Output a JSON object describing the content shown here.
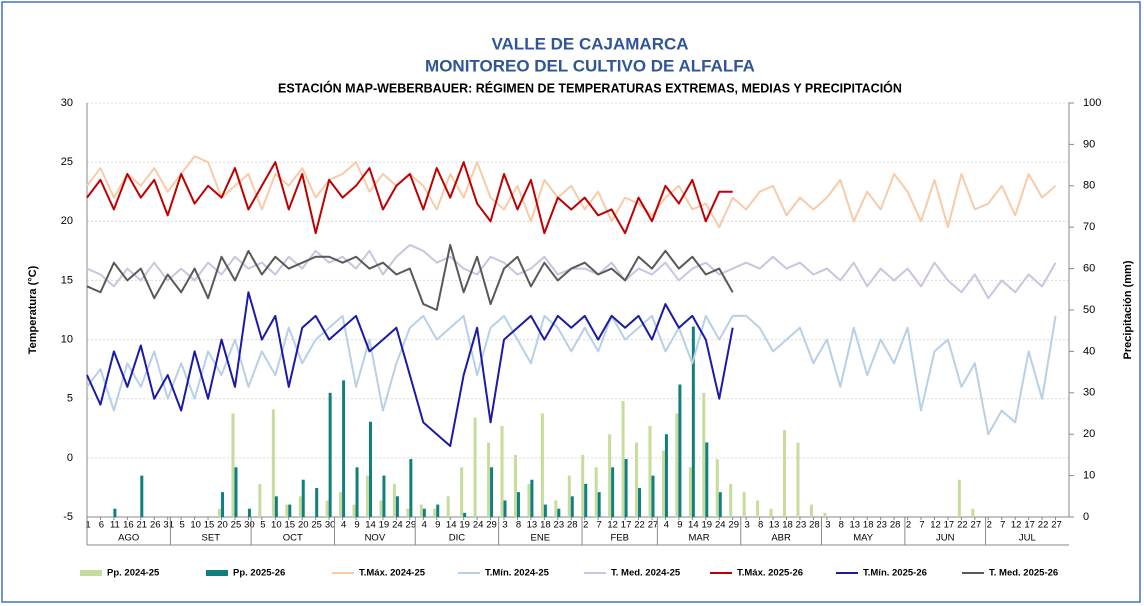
{
  "chart_data": {
    "type": "line",
    "title": "VALLE DE CAJAMARCA",
    "subtitle": "MONITOREO DEL CULTIVO DE ALFALFA",
    "subtitle2": "ESTACIÓN MAP-WEBERBAUER: RÉGIMEN DE TEMPERATURAS EXTREMAS, MEDIAS Y PRECIPITACIÓN",
    "ylabel": "Temperatura (°C)",
    "y2label": "Precipitación (mm)",
    "ylim": [
      -5,
      30
    ],
    "yticks": [
      -5,
      0,
      5,
      10,
      15,
      20,
      25,
      30
    ],
    "y2lim": [
      0,
      100
    ],
    "y2ticks": [
      0,
      10,
      20,
      30,
      40,
      50,
      60,
      70,
      80,
      90,
      100
    ],
    "xlim": [
      0,
      365
    ],
    "grid": true,
    "months": [
      "AGO",
      "SET",
      "OCT",
      "NOV",
      "DIC",
      "ENE",
      "FEB",
      "MAR",
      "ABR",
      "MAY",
      "JUN",
      "JUL"
    ],
    "xticks": [
      {
        "value": 0,
        "label": "1"
      },
      {
        "value": 5,
        "label": "6"
      },
      {
        "value": 10,
        "label": "11"
      },
      {
        "value": 15,
        "label": "16"
      },
      {
        "value": 20,
        "label": "21"
      },
      {
        "value": 25,
        "label": "26"
      },
      {
        "value": 30,
        "label": "31"
      },
      {
        "value": 35,
        "label": "5"
      },
      {
        "value": 40,
        "label": "10"
      },
      {
        "value": 45,
        "label": "15"
      },
      {
        "value": 50,
        "label": "20"
      },
      {
        "value": 55,
        "label": "25"
      },
      {
        "value": 60,
        "label": "30"
      },
      {
        "value": 65,
        "label": "5"
      },
      {
        "value": 70,
        "label": "10"
      },
      {
        "value": 75,
        "label": "15"
      },
      {
        "value": 80,
        "label": "20"
      },
      {
        "value": 85,
        "label": "25"
      },
      {
        "value": 90,
        "label": "30"
      },
      {
        "value": 95,
        "label": "4"
      },
      {
        "value": 100,
        "label": "9"
      },
      {
        "value": 105,
        "label": "14"
      },
      {
        "value": 110,
        "label": "19"
      },
      {
        "value": 115,
        "label": "24"
      },
      {
        "value": 120,
        "label": "29"
      },
      {
        "value": 125,
        "label": "4"
      },
      {
        "value": 130,
        "label": "9"
      },
      {
        "value": 135,
        "label": "14"
      },
      {
        "value": 140,
        "label": "19"
      },
      {
        "value": 145,
        "label": "24"
      },
      {
        "value": 150,
        "label": "29"
      },
      {
        "value": 155,
        "label": "3"
      },
      {
        "value": 160,
        "label": "8"
      },
      {
        "value": 165,
        "label": "13"
      },
      {
        "value": 170,
        "label": "18"
      },
      {
        "value": 175,
        "label": "23"
      },
      {
        "value": 180,
        "label": "28"
      },
      {
        "value": 185,
        "label": "2"
      },
      {
        "value": 190,
        "label": "7"
      },
      {
        "value": 195,
        "label": "12"
      },
      {
        "value": 200,
        "label": "17"
      },
      {
        "value": 205,
        "label": "22"
      },
      {
        "value": 210,
        "label": "27"
      },
      {
        "value": 215,
        "label": "4"
      },
      {
        "value": 220,
        "label": "9"
      },
      {
        "value": 225,
        "label": "14"
      },
      {
        "value": 230,
        "label": "19"
      },
      {
        "value": 235,
        "label": "24"
      },
      {
        "value": 240,
        "label": "29"
      },
      {
        "value": 245,
        "label": "3"
      },
      {
        "value": 250,
        "label": "8"
      },
      {
        "value": 255,
        "label": "13"
      },
      {
        "value": 260,
        "label": "18"
      },
      {
        "value": 265,
        "label": "23"
      },
      {
        "value": 270,
        "label": "28"
      },
      {
        "value": 275,
        "label": "3"
      },
      {
        "value": 280,
        "label": "8"
      },
      {
        "value": 285,
        "label": "13"
      },
      {
        "value": 290,
        "label": "18"
      },
      {
        "value": 295,
        "label": "23"
      },
      {
        "value": 300,
        "label": "28"
      },
      {
        "value": 305,
        "label": "2"
      },
      {
        "value": 310,
        "label": "7"
      },
      {
        "value": 315,
        "label": "12"
      },
      {
        "value": 320,
        "label": "17"
      },
      {
        "value": 325,
        "label": "22"
      },
      {
        "value": 330,
        "label": "27"
      },
      {
        "value": 335,
        "label": "2"
      },
      {
        "value": 340,
        "label": "7"
      },
      {
        "value": 345,
        "label": "12"
      },
      {
        "value": 350,
        "label": "17"
      },
      {
        "value": 355,
        "label": "22"
      },
      {
        "value": 360,
        "label": "27"
      }
    ],
    "x": [
      0,
      5,
      10,
      15,
      20,
      25,
      30,
      35,
      40,
      45,
      50,
      55,
      60,
      65,
      70,
      75,
      80,
      85,
      90,
      95,
      100,
      105,
      110,
      115,
      120,
      125,
      130,
      135,
      140,
      145,
      150,
      155,
      160,
      165,
      170,
      175,
      180,
      185,
      190,
      195,
      200,
      205,
      210,
      215,
      220,
      225,
      230,
      235,
      240,
      245,
      250,
      255,
      260,
      265,
      270,
      275,
      280,
      285,
      290,
      295,
      300,
      305,
      310,
      315,
      320,
      325,
      330,
      335,
      340,
      345,
      350,
      355,
      360
    ],
    "series": [
      {
        "name": "Pp. 2024-25",
        "kind": "bar",
        "axis": "y2",
        "color": "#c5dc9c",
        "values": [
          0,
          0,
          0,
          0,
          0,
          0,
          0,
          0,
          0,
          0,
          2,
          25,
          0,
          8,
          26,
          3,
          5,
          0,
          4,
          6,
          3,
          10,
          4,
          8,
          2,
          3,
          2,
          5,
          12,
          24,
          18,
          22,
          15,
          8,
          25,
          4,
          10,
          15,
          12,
          20,
          28,
          18,
          22,
          16,
          25,
          12,
          30,
          14,
          8,
          6,
          4,
          2,
          21,
          18,
          3,
          1,
          0,
          0,
          0,
          0,
          0,
          0,
          0,
          0,
          0,
          9,
          2,
          0,
          0,
          0,
          0,
          0,
          0
        ]
      },
      {
        "name": "Pp. 2025-26",
        "kind": "bar",
        "axis": "y2",
        "color": "#127f7f",
        "values": [
          0,
          0,
          2,
          0,
          10,
          0,
          0,
          0,
          0,
          0,
          6,
          12,
          2,
          0,
          5,
          3,
          9,
          7,
          30,
          33,
          12,
          23,
          10,
          5,
          14,
          2,
          3,
          0,
          1,
          0,
          12,
          4,
          6,
          9,
          3,
          2,
          5,
          8,
          6,
          12,
          14,
          7,
          10,
          20,
          32,
          46,
          18,
          6,
          0,
          null,
          null,
          null,
          null,
          null,
          null,
          null,
          null,
          null,
          null,
          null,
          null,
          null,
          null,
          null,
          null,
          null,
          null,
          null,
          null,
          null,
          null,
          null,
          null
        ]
      },
      {
        "name": "T.Máx. 2024-25",
        "kind": "line",
        "color": "#f8cba8",
        "values": [
          23,
          24.5,
          22,
          24,
          23,
          24.5,
          22.5,
          24,
          25.5,
          25,
          22,
          23,
          24,
          21,
          24,
          23,
          24.5,
          22,
          23.5,
          24,
          25,
          22.5,
          24,
          23,
          24,
          23,
          21,
          24,
          22,
          25,
          22,
          21,
          23,
          20,
          23.5,
          22,
          23,
          21,
          22.5,
          20,
          22,
          21.5,
          20.5,
          22,
          23,
          21,
          21.5,
          19.5,
          22,
          21,
          22.5,
          23,
          20.5,
          22,
          21,
          22,
          23.5,
          20,
          22.5,
          21,
          24,
          22.5,
          20,
          23.5,
          19.5,
          24,
          21,
          21.5,
          23,
          20.5,
          24,
          22,
          23
        ]
      },
      {
        "name": "T.Mín. 2024-25",
        "kind": "line",
        "color": "#b8d0e6",
        "values": [
          6,
          7.5,
          4,
          8,
          6,
          9,
          5,
          8,
          5,
          9,
          7,
          10,
          6,
          9,
          7,
          11,
          8,
          10,
          11,
          12,
          6,
          10,
          4,
          8,
          11,
          12,
          10,
          11,
          12,
          7,
          11,
          12,
          10,
          8,
          12,
          11,
          9,
          11,
          9,
          12,
          10,
          11,
          12,
          9,
          11,
          8,
          12,
          10,
          12,
          12,
          11,
          9,
          10,
          11,
          8,
          10,
          6,
          11,
          7,
          10,
          8,
          11,
          4,
          9,
          10,
          6,
          8,
          2,
          4,
          3,
          9,
          5,
          12
        ]
      },
      {
        "name": "T. Med. 2024-25",
        "kind": "line",
        "color": "#cdc2e0",
        "values": [
          16,
          15.5,
          14.5,
          16,
          15,
          16.5,
          15,
          16,
          15,
          16.5,
          15.5,
          17,
          16,
          16.5,
          15.5,
          17,
          16,
          17.5,
          16.5,
          17,
          16,
          17.5,
          15.5,
          17,
          18,
          17.5,
          16.5,
          17,
          16,
          15.5,
          17,
          16.5,
          15.5,
          16,
          17,
          15.5,
          16,
          16,
          15.5,
          16.5,
          15,
          16,
          15.5,
          16.5,
          15,
          16,
          16.5,
          15.5,
          16,
          16.5,
          16,
          17,
          16,
          16.5,
          15.5,
          16,
          15,
          16.5,
          14.5,
          16,
          15,
          16,
          14.5,
          16.5,
          15,
          14,
          15.5,
          13.5,
          15,
          14,
          15.5,
          14.5,
          16.5
        ]
      },
      {
        "name": "T.Máx. 2025-26",
        "kind": "line",
        "color": "#c00000",
        "values": [
          22,
          23.5,
          21,
          24,
          22,
          23.5,
          20.5,
          24,
          21.5,
          23,
          22,
          24.5,
          21,
          23,
          25,
          21,
          24,
          19,
          23.5,
          22,
          23,
          24.5,
          21,
          23,
          24,
          21,
          24.5,
          22,
          25,
          21.5,
          20,
          24,
          21,
          23.5,
          19,
          22,
          21,
          22,
          20.5,
          21,
          19,
          22,
          20,
          23,
          21.5,
          23.5,
          20,
          22.5,
          22.5,
          null,
          null,
          null,
          null,
          null,
          null,
          null,
          null,
          null,
          null,
          null,
          null,
          null,
          null,
          null,
          null,
          null,
          null,
          null,
          null,
          null,
          null,
          null,
          null
        ]
      },
      {
        "name": "T.Mín. 2025-26",
        "kind": "line",
        "color": "#1a1aa6",
        "values": [
          7,
          4.5,
          9,
          6,
          9.5,
          5,
          7,
          4,
          9,
          5,
          10,
          6,
          14,
          10,
          12,
          6,
          11,
          12,
          10,
          11,
          12,
          9,
          10,
          11,
          7,
          3,
          2,
          1,
          7,
          11,
          3,
          10,
          11,
          12,
          10,
          12,
          11,
          12,
          10,
          12,
          11,
          12,
          10,
          13,
          11,
          12,
          10,
          5,
          11,
          null,
          null,
          null,
          null,
          null,
          null,
          null,
          null,
          null,
          null,
          null,
          null,
          null,
          null,
          null,
          null,
          null,
          null,
          null,
          null,
          null,
          null,
          null,
          null
        ]
      },
      {
        "name": "T. Med. 2025-26",
        "kind": "line",
        "color": "#595959",
        "values": [
          14.5,
          14,
          16.5,
          15,
          16,
          13.5,
          15.5,
          14,
          16,
          13.5,
          17,
          15,
          17.5,
          15.5,
          17,
          16,
          16.5,
          17,
          17,
          16.5,
          17,
          16,
          16.5,
          15.5,
          16,
          13,
          12.5,
          18,
          14,
          17,
          13,
          16,
          17,
          14.5,
          16.5,
          15,
          16,
          16.5,
          15.5,
          16,
          15,
          17,
          16,
          17.5,
          16,
          17,
          15.5,
          16,
          14,
          null,
          null,
          null,
          null,
          null,
          null,
          null,
          null,
          null,
          null,
          null,
          null,
          null,
          null,
          null,
          null,
          null,
          null,
          null,
          null,
          null,
          null,
          null,
          null
        ]
      }
    ]
  }
}
